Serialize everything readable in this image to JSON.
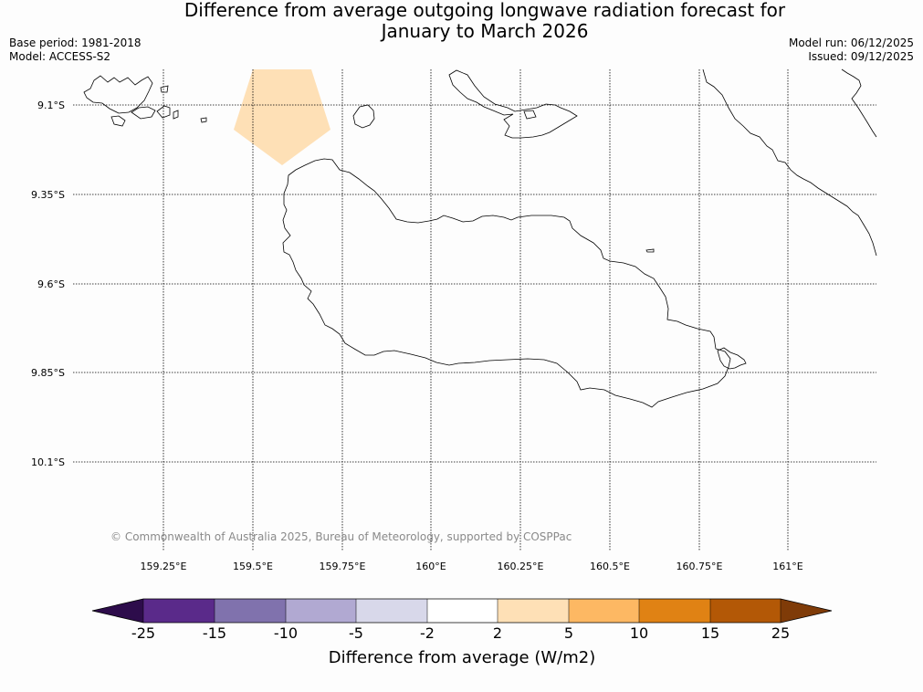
{
  "title": {
    "line1": "Difference from average outgoing longwave radiation forecast for",
    "line2": "January to March 2026"
  },
  "meta": {
    "base_period": "Base period: 1981-2018",
    "model": "Model: ACCESS-S2",
    "model_run": "Model run: 06/12/2025",
    "issued": "Issued: 09/12/2025"
  },
  "map": {
    "lat_labels": [
      "9.1°S",
      "9.35°S",
      "9.6°S",
      "9.85°S",
      "10.1°S"
    ],
    "lon_labels": [
      "159.25°E",
      "159.5°E",
      "159.75°E",
      "160°E",
      "160.25°E",
      "160.5°E",
      "160.75°E",
      "161°E"
    ],
    "copyright": "© Commonwealth of Australia 2025, Bureau of Meteorology, supported by COSPPac",
    "anomaly_category": "2 to 5"
  },
  "colorbar": {
    "title": "Difference from average (W/m2)",
    "ticks": [
      "-25",
      "-15",
      "-10",
      "-5",
      "-2",
      "2",
      "5",
      "10",
      "15",
      "25"
    ],
    "colors": [
      "#2d0c4b",
      "#5a2a8a",
      "#8072ad",
      "#b1a9d2",
      "#d8d8ea",
      "#ffffff",
      "#fee0b6",
      "#fdb863",
      "#e08214",
      "#b35806",
      "#7f3b08"
    ]
  }
}
